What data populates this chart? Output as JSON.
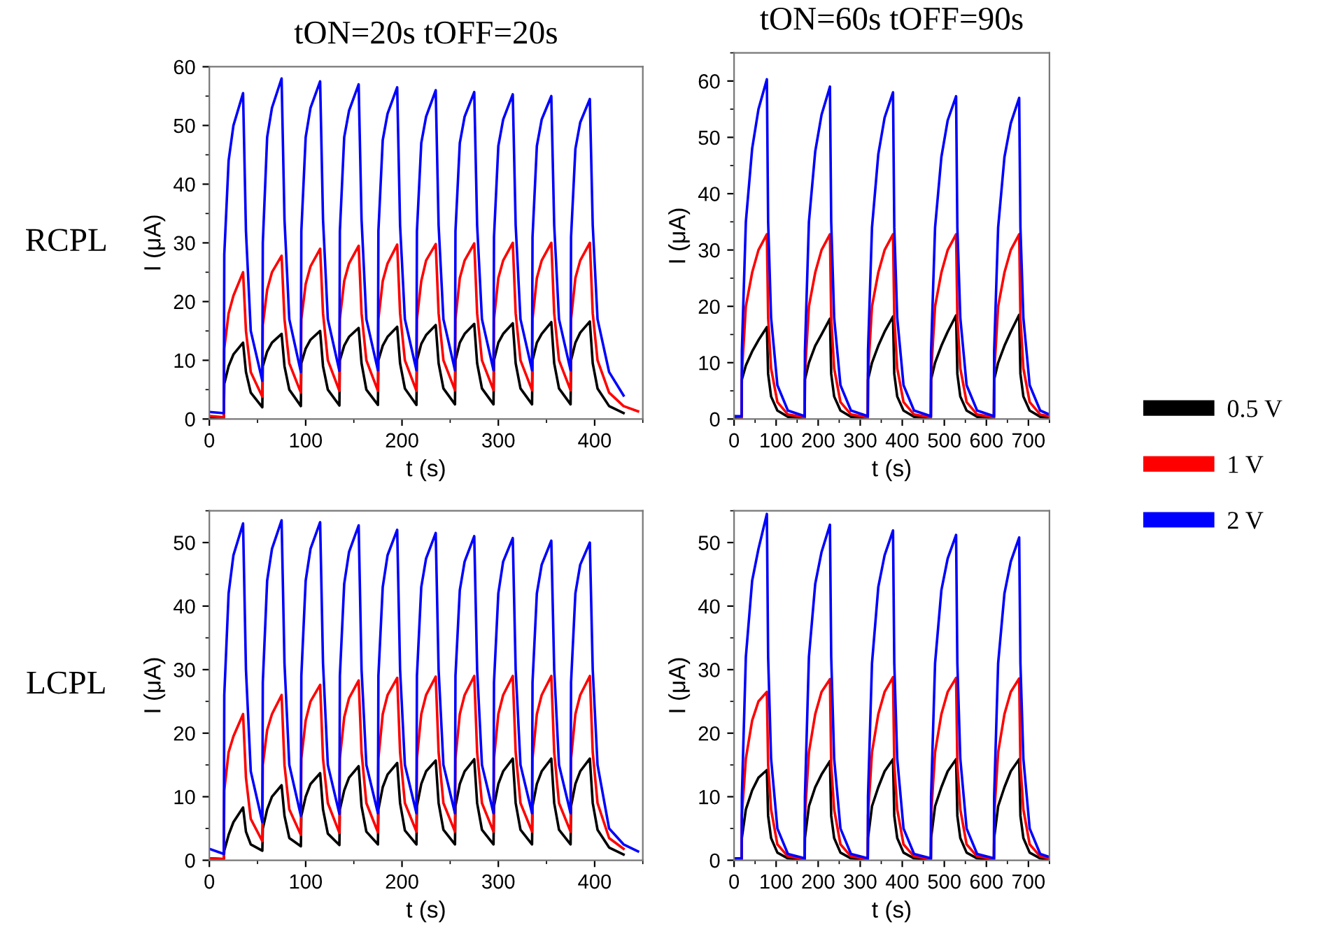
{
  "chart_data": [
    {
      "type": "line",
      "title": "tON=20s tOFF=20s",
      "annotations": [
        "RCPL"
      ],
      "xlabel": "t (s)",
      "ylabel": "I (μA)",
      "xlim": [
        0,
        450
      ],
      "xticks": [
        0,
        100,
        200,
        300,
        400
      ],
      "ylim": [
        0,
        60
      ],
      "yticks": [
        0,
        10,
        20,
        30,
        40,
        50,
        60
      ],
      "grid": false,
      "legend": false,
      "x": [
        0,
        15,
        15.5,
        20,
        25,
        35,
        38,
        43,
        55,
        55.5,
        60,
        65,
        75,
        78,
        83,
        95,
        95.5,
        100,
        105,
        115,
        118,
        123,
        135,
        135.5,
        140,
        145,
        155,
        158,
        163,
        175,
        175.5,
        180,
        185,
        195,
        198,
        203,
        215,
        215.5,
        220,
        225,
        235,
        238,
        243,
        255,
        255.5,
        260,
        265,
        275,
        278,
        283,
        295,
        295.5,
        300,
        305,
        315,
        318,
        323,
        335,
        335.5,
        340,
        345,
        355,
        358,
        363,
        375,
        375.5,
        380,
        385,
        395,
        398,
        403,
        415,
        430,
        445
      ],
      "series": [
        {
          "color": "#000000",
          "values": [
            0.3,
            0.2,
            6,
            9,
            11,
            13,
            8,
            4.5,
            2,
            9,
            11.5,
            13,
            14.5,
            9,
            5,
            2.2,
            9.5,
            12,
            13.5,
            15,
            9,
            5,
            2.3,
            10,
            12.5,
            14,
            15.5,
            9.5,
            5,
            2.4,
            10,
            12.5,
            14,
            15.7,
            9.5,
            5.2,
            2.4,
            10,
            12.8,
            14.3,
            16,
            9.5,
            5.2,
            2.5,
            10,
            13,
            14.5,
            16.2,
            9.5,
            5.2,
            2.5,
            10,
            13,
            14.5,
            16.3,
            9.5,
            5.2,
            2.5,
            10,
            13,
            14.5,
            16.5,
            9.5,
            5.2,
            2.5,
            10,
            13,
            14.7,
            16.6,
            9.5,
            5.2,
            2.2,
            1,
            null
          ]
        },
        {
          "color": "#ff0000",
          "values": [
            0.5,
            0.3,
            12,
            18,
            21,
            25,
            15,
            8,
            3.8,
            16,
            22,
            25,
            27.8,
            17,
            9.5,
            4.5,
            17,
            23,
            26,
            29,
            18,
            10,
            4.8,
            17,
            23.5,
            26.5,
            29.5,
            18,
            10,
            4.8,
            17,
            23.5,
            26.5,
            29.7,
            18,
            10,
            4.8,
            17,
            23.5,
            27,
            29.8,
            18,
            10,
            4.9,
            17,
            24,
            27,
            29.9,
            18,
            10,
            4.9,
            17,
            24,
            27,
            30,
            18,
            10,
            4.9,
            17,
            24,
            27,
            30,
            18,
            10,
            4.9,
            17,
            24,
            27,
            30,
            18,
            10,
            4.5,
            2.2,
            1.3
          ]
        },
        {
          "color": "#0000ff",
          "values": [
            1.2,
            1.0,
            28,
            44,
            50,
            55.5,
            32,
            15,
            6.5,
            30,
            48,
            53,
            58,
            34,
            17,
            8,
            32,
            48,
            53,
            57.5,
            34,
            17,
            8.2,
            32,
            48,
            52.5,
            57,
            34,
            17,
            8.3,
            32,
            47.5,
            52,
            56.5,
            33,
            17,
            8.3,
            32,
            47,
            51.5,
            56,
            33,
            17,
            8.3,
            32,
            47,
            51.5,
            55.7,
            33,
            17,
            8.3,
            31,
            46.5,
            51,
            55.3,
            33,
            17,
            8.3,
            31,
            46.5,
            51,
            55,
            33,
            17,
            8.3,
            31,
            46,
            50.5,
            54.5,
            33,
            17,
            8,
            4,
            null
          ]
        }
      ]
    },
    {
      "type": "line",
      "title": "tON=60s tOFF=90s",
      "xlabel": "t (s)",
      "ylabel": "I (μA)",
      "xlim": [
        0,
        750
      ],
      "xticks": [
        0,
        100,
        200,
        300,
        400,
        500,
        600,
        700
      ],
      "ylim": [
        0,
        65
      ],
      "yticks": [
        0,
        10,
        20,
        30,
        40,
        50,
        60
      ],
      "grid": false,
      "legend": "right",
      "x": [
        0,
        18,
        18.5,
        28,
        43,
        58,
        78,
        81,
        88,
        103,
        128,
        168,
        168.5,
        178,
        193,
        208,
        228,
        231,
        238,
        253,
        278,
        318,
        318.5,
        328,
        343,
        358,
        378,
        381,
        388,
        403,
        428,
        468,
        468.5,
        478,
        493,
        508,
        528,
        531,
        538,
        553,
        578,
        618,
        618.5,
        628,
        643,
        658,
        678,
        681,
        688,
        703,
        728,
        750
      ],
      "series": [
        {
          "name": "0.5 V",
          "color": "#000000",
          "values": [
            0.2,
            0.2,
            7,
            9.5,
            12,
            14,
            16.3,
            8,
            4,
            1.5,
            0.4,
            0.2,
            7,
            10,
            13,
            15,
            17.8,
            8,
            4,
            1.5,
            0.4,
            0.2,
            7,
            10,
            13,
            15.5,
            18.2,
            8,
            4,
            1.5,
            0.4,
            0.2,
            7,
            10,
            13,
            15.5,
            18.4,
            8,
            4,
            1.5,
            0.4,
            0.2,
            7,
            10,
            13,
            15.5,
            18.5,
            8,
            4,
            1.5,
            0.4,
            0.2
          ]
        },
        {
          "name": "1 V",
          "color": "#ff0000",
          "values": [
            0.5,
            0.3,
            8,
            20,
            26,
            30,
            32.8,
            18,
            9,
            3,
            0.8,
            0.3,
            8,
            20,
            26,
            30,
            32.8,
            18,
            9,
            3,
            0.8,
            0.3,
            8,
            20,
            26,
            30,
            32.8,
            18,
            9,
            3,
            0.8,
            0.3,
            8,
            20,
            26,
            30,
            32.8,
            18,
            9,
            3,
            0.8,
            0.3,
            8,
            20,
            26,
            30,
            32.8,
            18,
            9,
            3,
            0.8,
            0.5
          ]
        },
        {
          "name": "2 V",
          "color": "#0000ff",
          "values": [
            0.5,
            0.5,
            12,
            35,
            48,
            55,
            60.3,
            35,
            18,
            6,
            1.5,
            0.5,
            12,
            35,
            47.5,
            54,
            59,
            35,
            18,
            6,
            1.5,
            0.5,
            12,
            34,
            47,
            53.5,
            58,
            34,
            18,
            6,
            1.5,
            0.5,
            12,
            34,
            46.5,
            53,
            57.3,
            34,
            18,
            6,
            1.5,
            0.5,
            12,
            34,
            46.5,
            52.5,
            57,
            34,
            18,
            6,
            1.5,
            0.8
          ]
        }
      ]
    },
    {
      "type": "line",
      "annotations": [
        "LCPL"
      ],
      "xlabel": "t (s)",
      "ylabel": "I (μA)",
      "xlim": [
        0,
        450
      ],
      "xticks": [
        0,
        100,
        200,
        300,
        400
      ],
      "ylim": [
        0,
        55
      ],
      "yticks": [
        0,
        10,
        20,
        30,
        40,
        50
      ],
      "grid": false,
      "legend": false,
      "x": [
        0,
        15,
        15.5,
        20,
        25,
        35,
        38,
        43,
        55,
        55.5,
        60,
        65,
        75,
        78,
        83,
        95,
        95.5,
        100,
        105,
        115,
        118,
        123,
        135,
        135.5,
        140,
        145,
        155,
        158,
        163,
        175,
        175.5,
        180,
        185,
        195,
        198,
        203,
        215,
        215.5,
        220,
        225,
        235,
        238,
        243,
        255,
        255.5,
        260,
        265,
        275,
        278,
        283,
        295,
        295.5,
        300,
        305,
        315,
        318,
        323,
        335,
        335.5,
        340,
        345,
        355,
        358,
        363,
        375,
        375.5,
        380,
        385,
        395,
        398,
        403,
        415,
        430,
        445
      ],
      "series": [
        {
          "color": "#000000",
          "values": [
            0.3,
            0.2,
            1.5,
            4,
            6,
            8.3,
            4.5,
            2.5,
            1.5,
            5,
            8,
            10,
            11.8,
            7,
            3.5,
            2.2,
            7,
            10,
            12,
            13.7,
            8,
            4.2,
            2.4,
            8,
            11,
            13,
            14.8,
            8.5,
            4.5,
            2.5,
            8,
            11.5,
            13.5,
            15.3,
            9,
            4.7,
            2.5,
            8.5,
            12,
            14,
            15.7,
            9,
            4.8,
            2.5,
            8.5,
            12,
            14,
            15.9,
            9,
            4.8,
            2.5,
            8.5,
            12,
            14,
            16,
            9,
            4.8,
            2.5,
            8.5,
            12,
            14,
            16,
            9,
            4.8,
            2.5,
            8.5,
            12,
            14,
            16,
            9,
            4.8,
            2,
            0.9,
            null
          ]
        },
        {
          "color": "#ff0000",
          "values": [
            0.3,
            0.2,
            11,
            17,
            19.5,
            23,
            13,
            6.5,
            3,
            15,
            20.5,
            23,
            26,
            15,
            8,
            4,
            16,
            22,
            25,
            27.6,
            16,
            9,
            4.3,
            16,
            22.5,
            25.5,
            28.3,
            17,
            9,
            4.4,
            16,
            23,
            26,
            28.7,
            17,
            9,
            4.5,
            16,
            23,
            26,
            28.9,
            17,
            9,
            4.5,
            16,
            23,
            26,
            29,
            17,
            9,
            4.5,
            16,
            23,
            26,
            29,
            17,
            9,
            4.5,
            16,
            23,
            26,
            29,
            17,
            9,
            4.5,
            16,
            23,
            26,
            29,
            17,
            9,
            3.5,
            1.8,
            null
          ]
        },
        {
          "color": "#0000ff",
          "values": [
            1.8,
            1.0,
            26,
            42,
            48,
            53,
            30,
            14,
            6,
            28,
            44,
            49,
            53.5,
            31,
            15,
            7,
            29,
            44,
            49,
            53.2,
            31,
            15,
            7.3,
            29,
            43.5,
            48.5,
            52.7,
            30,
            15,
            7.4,
            29,
            43,
            48,
            52,
            30,
            15,
            7.4,
            29,
            43,
            47.5,
            51.5,
            30,
            15,
            7.4,
            29,
            42.5,
            47,
            51,
            30,
            15,
            7.4,
            28,
            42,
            47,
            50.7,
            30,
            15,
            7.4,
            28,
            42,
            46.5,
            50.3,
            30,
            15,
            7.4,
            28,
            42,
            46.5,
            50,
            30,
            15,
            5,
            2.5,
            1.4
          ]
        }
      ]
    },
    {
      "type": "line",
      "xlabel": "t (s)",
      "ylabel": "I (μA)",
      "xlim": [
        0,
        750
      ],
      "xticks": [
        0,
        100,
        200,
        300,
        400,
        500,
        600,
        700
      ],
      "ylim": [
        0,
        55
      ],
      "yticks": [
        0,
        10,
        20,
        30,
        40,
        50
      ],
      "grid": false,
      "legend": false,
      "x": [
        0,
        18,
        18.5,
        28,
        43,
        58,
        78,
        81,
        88,
        103,
        128,
        168,
        168.5,
        178,
        193,
        208,
        228,
        231,
        238,
        253,
        278,
        318,
        318.5,
        328,
        343,
        358,
        378,
        381,
        388,
        403,
        428,
        468,
        468.5,
        478,
        493,
        508,
        528,
        531,
        538,
        553,
        578,
        618,
        618.5,
        628,
        643,
        658,
        678,
        681,
        688,
        703,
        728,
        750
      ],
      "series": [
        {
          "color": "#000000",
          "values": [
            0.1,
            0.1,
            3.5,
            8,
            11,
            13,
            14.2,
            7,
            3.5,
            1.2,
            0.3,
            0.1,
            3.5,
            8.5,
            11.5,
            13.5,
            15.6,
            7,
            3.5,
            1.2,
            0.3,
            0.1,
            3.5,
            8.5,
            11.5,
            14,
            15.9,
            7,
            3.5,
            1.2,
            0.3,
            0.1,
            3.5,
            8.5,
            11.5,
            14,
            15.9,
            7,
            3.5,
            1.2,
            0.3,
            0.1,
            3.5,
            8.5,
            11.5,
            14,
            15.9,
            7,
            3.5,
            1.2,
            0.3,
            0.1
          ]
        },
        {
          "color": "#ff0000",
          "values": [
            0.2,
            0.2,
            7,
            16,
            22,
            25,
            26.5,
            15,
            8,
            2.5,
            0.6,
            0.2,
            7,
            17,
            23,
            26.5,
            28.5,
            15,
            8,
            2.5,
            0.6,
            0.2,
            7,
            17,
            23,
            26.5,
            28.8,
            15,
            8,
            2.5,
            0.6,
            0.2,
            7,
            17,
            23,
            26.5,
            28.7,
            15,
            8,
            2.5,
            0.6,
            0.2,
            7,
            17,
            23,
            26.5,
            28.6,
            15,
            8,
            2.5,
            0.6,
            0.3
          ]
        },
        {
          "color": "#0000ff",
          "values": [
            0.3,
            0.3,
            10,
            32,
            44,
            49,
            54.5,
            32,
            16,
            5,
            1,
            0.3,
            10,
            32,
            43.5,
            48.5,
            52.8,
            32,
            16,
            5,
            1,
            0.3,
            10,
            31,
            43,
            48,
            51.9,
            31,
            16,
            5,
            1,
            0.3,
            10,
            31,
            42.5,
            47.5,
            51.2,
            31,
            16,
            5,
            1,
            0.3,
            10,
            31,
            42,
            47,
            50.8,
            31,
            16,
            5,
            1,
            0.5
          ]
        }
      ]
    }
  ]
}
